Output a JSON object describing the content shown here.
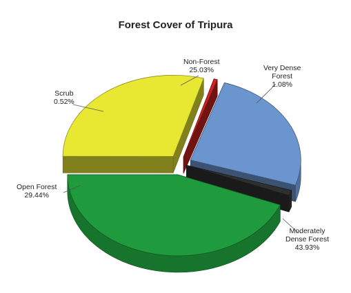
{
  "chart_data": {
    "type": "pie",
    "title": "Forest Cover of Tripura",
    "slices": [
      {
        "label": "Very Dense Forest",
        "lines": [
          "Very Dense",
          "Forest"
        ],
        "value": 1.08,
        "value_text": "1.08%",
        "color": "#2f2f2f"
      },
      {
        "label": "Moderately Dense Forest",
        "lines": [
          "Moderately",
          "Dense Forest"
        ],
        "value": 43.93,
        "value_text": "43.93%",
        "color": "#1f9a3c"
      },
      {
        "label": "Open Forest",
        "lines": [
          "Open Forest"
        ],
        "value": 29.44,
        "value_text": "29.44%",
        "color": "#e8e832"
      },
      {
        "label": "Scrub",
        "lines": [
          "Scrub"
        ],
        "value": 0.52,
        "value_text": "0.52%",
        "color": "#cc2222"
      },
      {
        "label": "Non-Forest",
        "lines": [
          "Non-Forest"
        ],
        "value": 25.03,
        "value_text": "25.03%",
        "color": "#6b95cf"
      }
    ],
    "style": "3d-exploded"
  }
}
